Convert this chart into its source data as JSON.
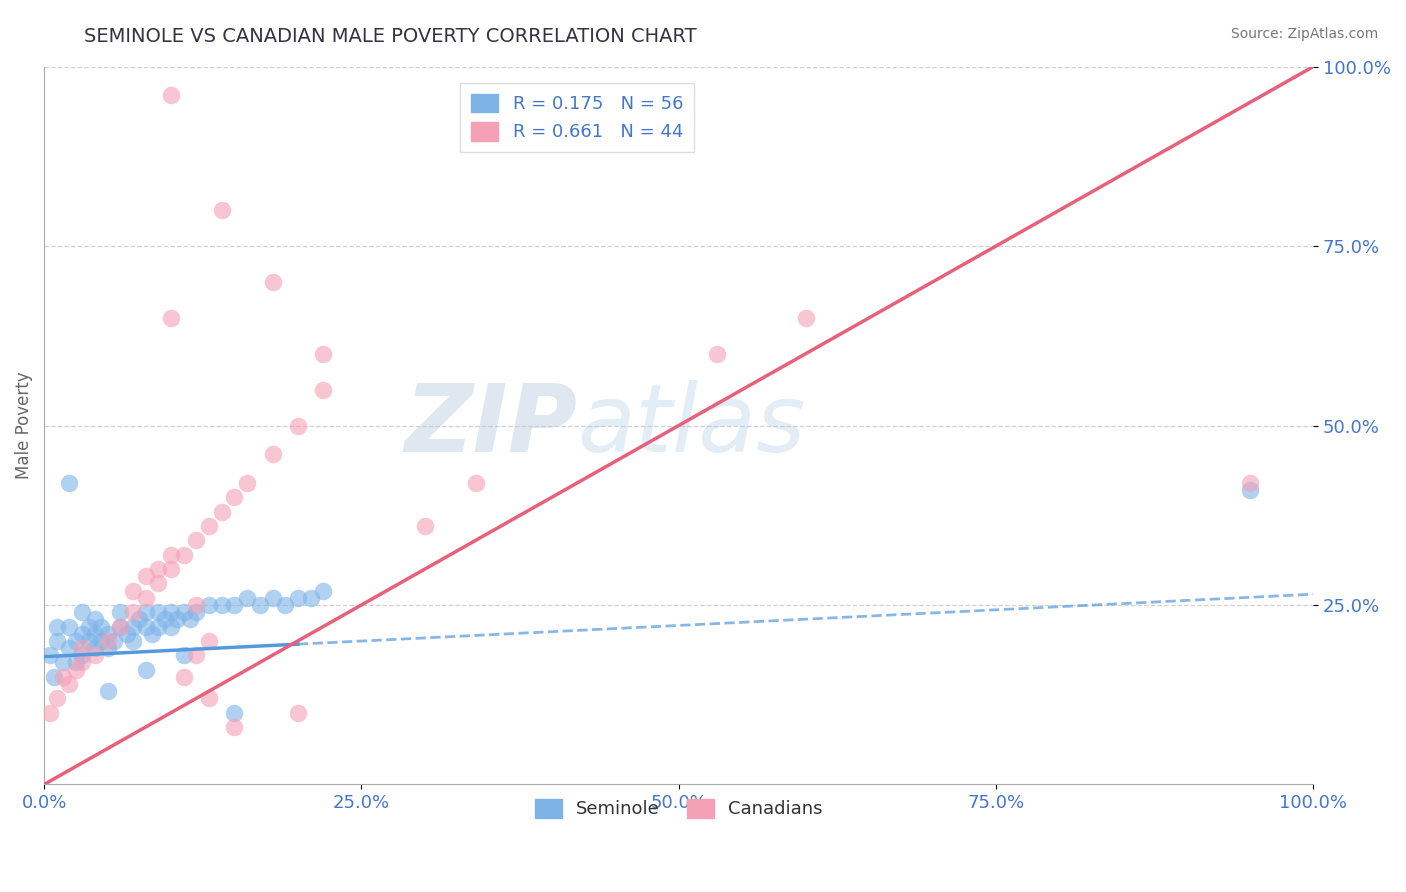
{
  "title": "SEMINOLE VS CANADIAN MALE POVERTY CORRELATION CHART",
  "source": "Source: ZipAtlas.com",
  "ylabel": "Male Poverty",
  "xlim": [
    0,
    1.0
  ],
  "ylim": [
    0,
    1.0
  ],
  "xticks": [
    0.0,
    0.25,
    0.5,
    0.75,
    1.0
  ],
  "xticklabels": [
    "0.0%",
    "25.0%",
    "50.0%",
    "75.0%",
    "100.0%"
  ],
  "yticks": [
    0.25,
    0.5,
    0.75,
    1.0
  ],
  "yticklabels": [
    "25.0%",
    "50.0%",
    "75.0%",
    "100.0%"
  ],
  "seminole_color": "#7eb3e8",
  "canadian_color": "#f4a0b5",
  "seminole_line_color": "#5599dd",
  "canadian_line_color": "#e8607a",
  "seminole_R": 0.175,
  "seminole_N": 56,
  "canadian_R": 0.661,
  "canadian_N": 44,
  "grid_color": "#cccccc",
  "title_color": "#333344",
  "axis_color": "#4477cc",
  "watermark_zip": "ZIP",
  "watermark_atlas": "atlas",
  "seminole_scatter_x": [
    0.005,
    0.008,
    0.01,
    0.01,
    0.015,
    0.02,
    0.02,
    0.025,
    0.025,
    0.03,
    0.03,
    0.03,
    0.035,
    0.035,
    0.04,
    0.04,
    0.04,
    0.045,
    0.045,
    0.05,
    0.05,
    0.055,
    0.06,
    0.06,
    0.065,
    0.07,
    0.07,
    0.075,
    0.08,
    0.08,
    0.085,
    0.09,
    0.09,
    0.095,
    0.1,
    0.1,
    0.105,
    0.11,
    0.115,
    0.12,
    0.13,
    0.14,
    0.15,
    0.16,
    0.17,
    0.18,
    0.19,
    0.2,
    0.21,
    0.22,
    0.02,
    0.05,
    0.08,
    0.11,
    0.95,
    0.15
  ],
  "seminole_scatter_y": [
    0.18,
    0.15,
    0.2,
    0.22,
    0.17,
    0.19,
    0.22,
    0.2,
    0.17,
    0.21,
    0.18,
    0.24,
    0.2,
    0.22,
    0.19,
    0.21,
    0.23,
    0.2,
    0.22,
    0.19,
    0.21,
    0.2,
    0.22,
    0.24,
    0.21,
    0.2,
    0.22,
    0.23,
    0.22,
    0.24,
    0.21,
    0.22,
    0.24,
    0.23,
    0.22,
    0.24,
    0.23,
    0.24,
    0.23,
    0.24,
    0.25,
    0.25,
    0.25,
    0.26,
    0.25,
    0.26,
    0.25,
    0.26,
    0.26,
    0.27,
    0.42,
    0.13,
    0.16,
    0.18,
    0.41,
    0.1
  ],
  "canadian_scatter_x": [
    0.005,
    0.01,
    0.015,
    0.02,
    0.025,
    0.03,
    0.03,
    0.04,
    0.05,
    0.06,
    0.07,
    0.08,
    0.09,
    0.1,
    0.11,
    0.12,
    0.13,
    0.14,
    0.15,
    0.16,
    0.18,
    0.2,
    0.22,
    0.1,
    0.14,
    0.18,
    0.22,
    0.12,
    0.07,
    0.08,
    0.09,
    0.1,
    0.11,
    0.12,
    0.13,
    0.3,
    0.34,
    0.53,
    0.6,
    0.15,
    0.2,
    0.13,
    0.95,
    0.1
  ],
  "canadian_scatter_y": [
    0.1,
    0.12,
    0.15,
    0.14,
    0.16,
    0.17,
    0.19,
    0.18,
    0.2,
    0.22,
    0.24,
    0.26,
    0.28,
    0.3,
    0.32,
    0.34,
    0.36,
    0.38,
    0.4,
    0.42,
    0.46,
    0.5,
    0.55,
    0.65,
    0.8,
    0.7,
    0.6,
    0.25,
    0.27,
    0.29,
    0.3,
    0.32,
    0.15,
    0.18,
    0.2,
    0.36,
    0.42,
    0.6,
    0.65,
    0.08,
    0.1,
    0.12,
    0.42,
    0.96
  ],
  "sem_line_x0": 0.0,
  "sem_line_y0": 0.178,
  "sem_line_x1": 1.0,
  "sem_line_y1": 0.265,
  "can_line_x0": 0.0,
  "can_line_y0": 0.0,
  "can_line_x1": 1.0,
  "can_line_y1": 1.0
}
